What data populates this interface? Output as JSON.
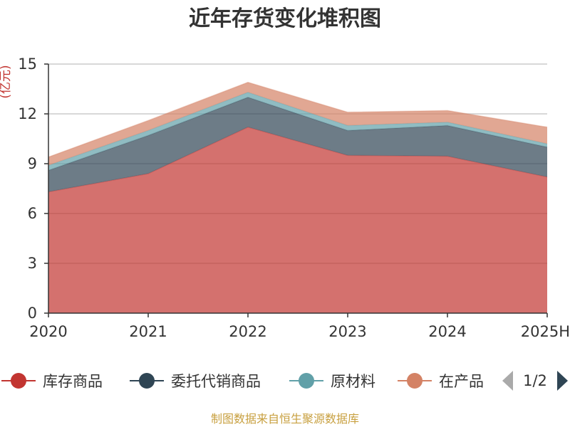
{
  "chart_data": {
    "type": "area",
    "stacked": true,
    "title": "近年存货变化堆积图",
    "ylabel": "(亿元)",
    "categories": [
      "2020",
      "2021",
      "2022",
      "2023",
      "2024",
      "2025H"
    ],
    "ylim": [
      0,
      15
    ],
    "yticks": [
      "0",
      "3",
      "6",
      "9",
      "12",
      "15"
    ],
    "grid": true,
    "series": [
      {
        "name": "库存商品",
        "color": "#c23531",
        "values": [
          7.3,
          8.4,
          11.2,
          9.5,
          9.45,
          8.2
        ]
      },
      {
        "name": "委托代销商品",
        "color": "#2f4554",
        "values": [
          1.3,
          2.3,
          1.8,
          1.5,
          1.85,
          1.8
        ]
      },
      {
        "name": "原材料",
        "color": "#61a0a8",
        "values": [
          0.3,
          0.3,
          0.3,
          0.3,
          0.2,
          0.2
        ]
      },
      {
        "name": "在产品",
        "color": "#d48265",
        "values": [
          0.5,
          0.6,
          0.6,
          0.8,
          0.7,
          1.0
        ]
      }
    ],
    "legend": {
      "position": "bottom",
      "page": "1/2"
    },
    "source": "制图数据来自恒生聚源数据库"
  }
}
